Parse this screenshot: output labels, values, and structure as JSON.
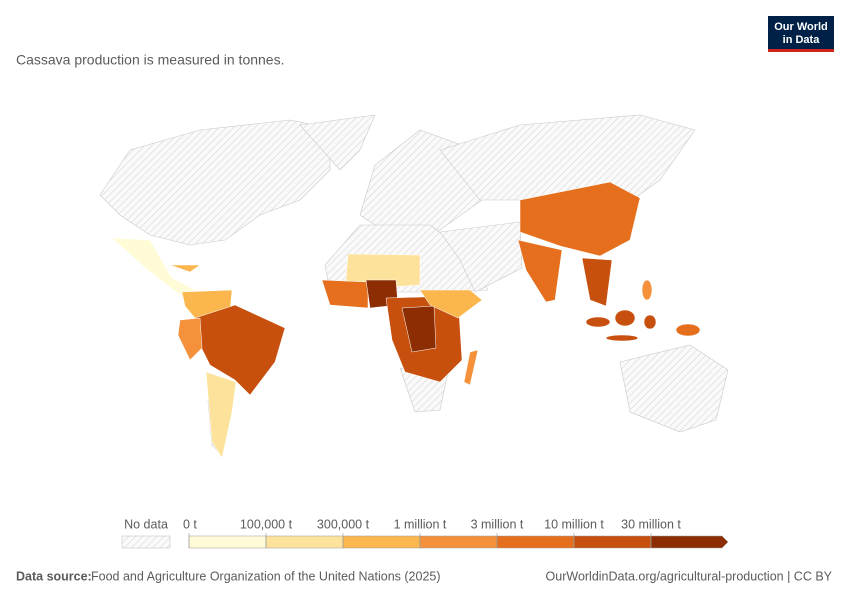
{
  "header": {
    "subtitle": "Cassava production is measured in tonnes.",
    "logo": [
      "Our World",
      "in Data"
    ]
  },
  "legend": {
    "no_data": "No data",
    "ticks": [
      {
        "value": 0,
        "label": "0 t"
      },
      {
        "value": 100000,
        "label": "100,000 t"
      },
      {
        "value": 300000,
        "label": "300,000 t"
      },
      {
        "value": 1000000,
        "label": "1 million t"
      },
      {
        "value": 3000000,
        "label": "3 million t"
      },
      {
        "value": 10000000,
        "label": "10 million t"
      },
      {
        "value": 30000000,
        "label": "30 million t"
      }
    ],
    "colors": [
      "#fefbd6",
      "#fde29b",
      "#fbb74e",
      "#f5913a",
      "#e56f1c",
      "#c8500e",
      "#8c2d04"
    ]
  },
  "footer": {
    "source_label": "Data source:",
    "source": "Food and Agriculture Organization of the United Nations (2025)",
    "link": "OurWorldinData.org/agricultural-production | CC BY"
  }
}
